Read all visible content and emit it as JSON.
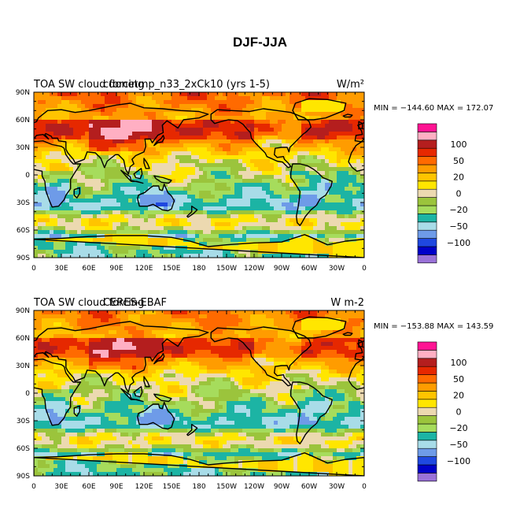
{
  "title": "DJF-JJA",
  "colors": [
    "#9a72d8",
    "#0000c8",
    "#1f48e0",
    "#6e9be8",
    "#a8dce8",
    "#1cb4a4",
    "#a6dc5c",
    "#9bc43c",
    "#ecd9b0",
    "#ffe600",
    "#ffc400",
    "#ff9c00",
    "#ff6a00",
    "#e62800",
    "#b41e1e",
    "#ffafc3",
    "#ff1493"
  ],
  "colorbar_labels": [
    {
      "index": 2.5,
      "text": "−100"
    },
    {
      "index": 4.5,
      "text": "−50"
    },
    {
      "index": 6.5,
      "text": "−20"
    },
    {
      "index": 8.5,
      "text": "0"
    },
    {
      "index": 10.5,
      "text": "20"
    },
    {
      "index": 12.5,
      "text": "50"
    },
    {
      "index": 14.5,
      "text": "100"
    }
  ],
  "chart_data": [
    {
      "type": "heatmap",
      "left_title": "TOA SW cloud forcing",
      "center_title": "cdonetmp_n33_2xCk10 (yrs 1-5)",
      "units": "W/m²",
      "min_max": "MIN = −144.60 MAX = 172.07",
      "x_ticks": [
        "0",
        "30E",
        "60E",
        "90E",
        "120E",
        "150E",
        "180",
        "150W",
        "120W",
        "90W",
        "60W",
        "30W",
        "0"
      ],
      "y_ticks": [
        "90N",
        "60N",
        "30N",
        "0",
        "30S",
        "60S",
        "90S"
      ],
      "xlim": [
        0,
        360
      ],
      "ylim": [
        -90,
        90
      ]
    },
    {
      "type": "heatmap",
      "left_title": "TOA SW cloud forcing",
      "center_title": "CERES-EBAF",
      "units": "W m-2",
      "min_max": "MIN = −153.88 MAX = 143.59",
      "x_ticks": [
        "0",
        "30E",
        "60E",
        "90E",
        "120E",
        "150E",
        "180",
        "150W",
        "120W",
        "90W",
        "60W",
        "30W",
        "0"
      ],
      "y_ticks": [
        "90N",
        "60N",
        "30N",
        "0",
        "30S",
        "60S",
        "90S"
      ],
      "xlim": [
        0,
        360
      ],
      "ylim": [
        -90,
        90
      ]
    }
  ]
}
